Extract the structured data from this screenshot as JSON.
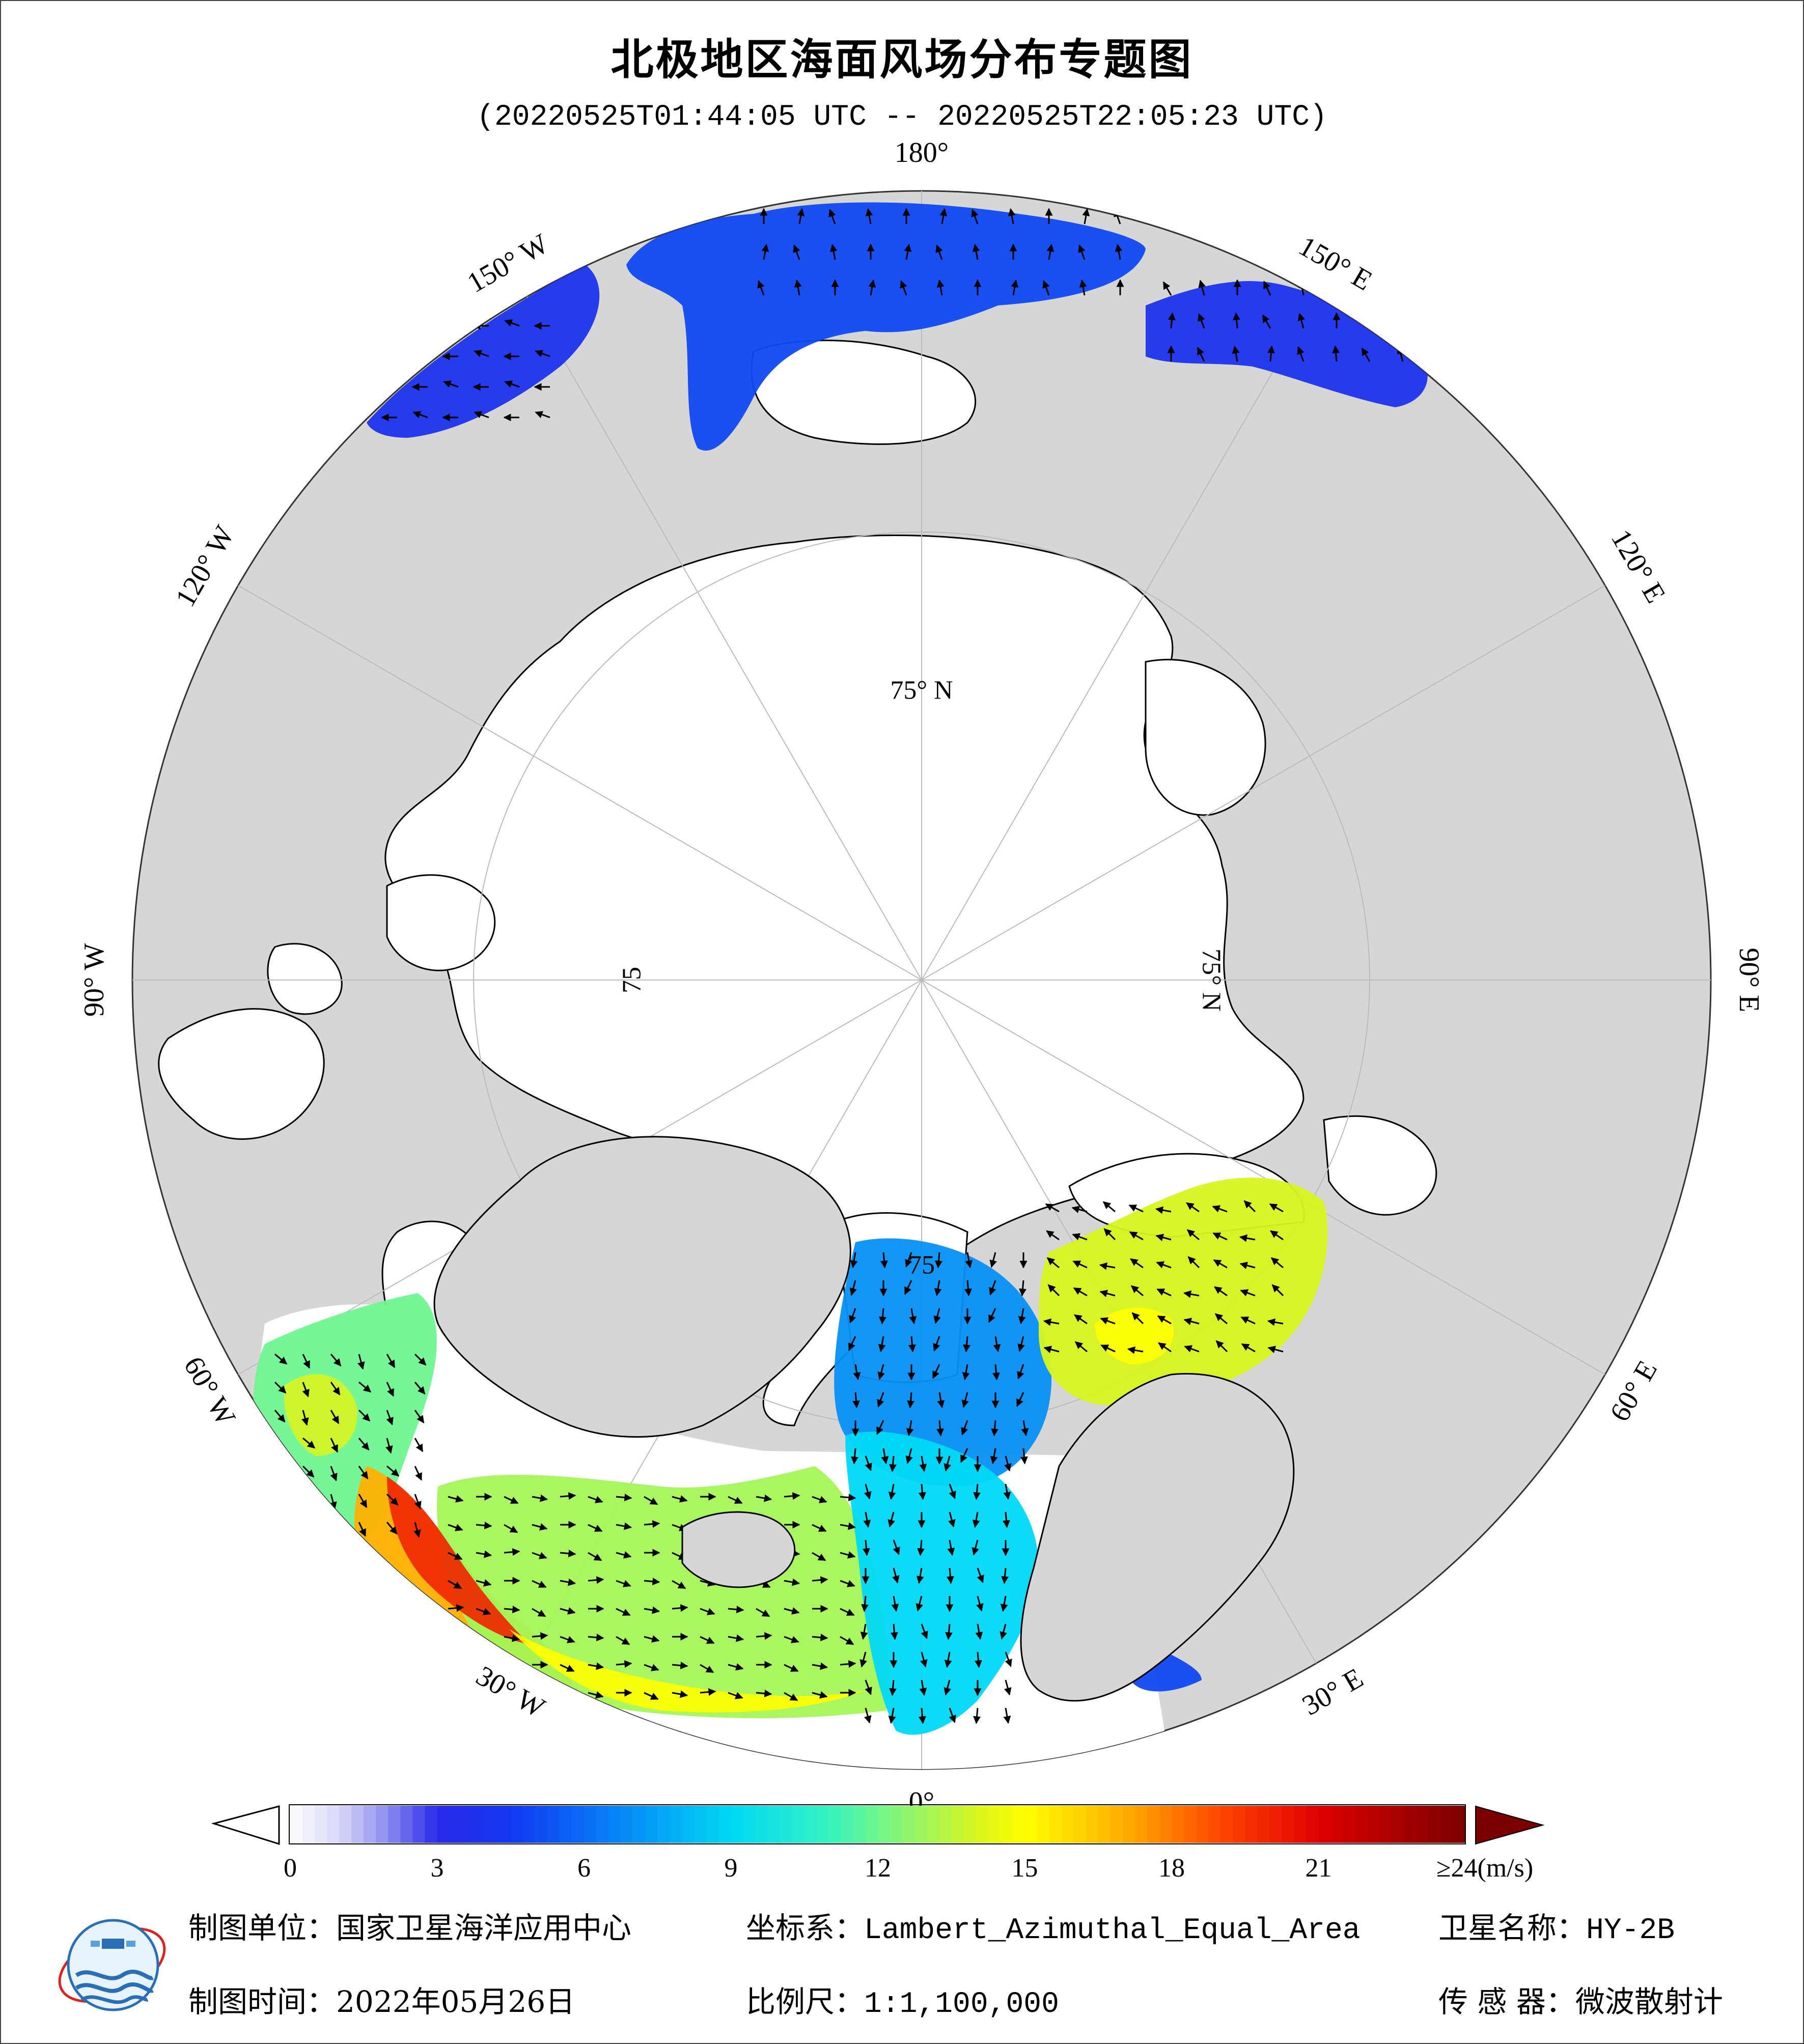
{
  "title": "北极地区海面风场分布专题图",
  "subtitle": "(20220525T01:44:05 UTC -- 20220525T22:05:23 UTC)",
  "map": {
    "projection": "Lambert_Azimuthal_Equal_Area",
    "center": "North Pole",
    "graticule_labels": [
      {
        "text": "180°",
        "lon": 180
      },
      {
        "text": "150° W",
        "lon": -150
      },
      {
        "text": "120° W",
        "lon": -120
      },
      {
        "text": "90° W",
        "lon": -90
      },
      {
        "text": "60° W",
        "lon": -60
      },
      {
        "text": "30° W",
        "lon": -30
      },
      {
        "text": "0°",
        "lon": 0
      },
      {
        "text": "30° E",
        "lon": 30
      },
      {
        "text": "60° E",
        "lon": 60
      },
      {
        "text": "90° E",
        "lon": 90
      },
      {
        "text": "120° E",
        "lon": 120
      },
      {
        "text": "150° E",
        "lon": 150
      }
    ],
    "latitude_labels": [
      {
        "text": "75° N",
        "lon": 180
      },
      {
        "text": "75° N",
        "lon": 90
      },
      {
        "text": "75",
        "lon": -90
      },
      {
        "text": "75",
        "lon": 0
      }
    ],
    "colors": {
      "land": "#d6d6d6",
      "sea_ice": "#ffffff",
      "coastline": "#000000",
      "gridline": "#bbbbbb",
      "arrow": "#000000"
    }
  },
  "colorbar": {
    "unit": "(m/s)",
    "min": 0,
    "max": 24,
    "tick_labels": [
      "0",
      "3",
      "6",
      "9",
      "12",
      "15",
      "18",
      "21",
      "≥24(m/s)"
    ],
    "tick_values": [
      0,
      3,
      6,
      9,
      12,
      15,
      18,
      21,
      24
    ],
    "stops": [
      {
        "v": 0,
        "c": "#ffffff"
      },
      {
        "v": 1,
        "c": "#d8d8fa"
      },
      {
        "v": 2,
        "c": "#8a8af0"
      },
      {
        "v": 3,
        "c": "#2a2ae8"
      },
      {
        "v": 4.5,
        "c": "#1338f0"
      },
      {
        "v": 6,
        "c": "#0a6cf7"
      },
      {
        "v": 9,
        "c": "#00d8f5"
      },
      {
        "v": 11,
        "c": "#35f3c0"
      },
      {
        "v": 12,
        "c": "#6ff590"
      },
      {
        "v": 14,
        "c": "#d8f520"
      },
      {
        "v": 15,
        "c": "#ffff00"
      },
      {
        "v": 17,
        "c": "#ffb000"
      },
      {
        "v": 19,
        "c": "#ff4500"
      },
      {
        "v": 21,
        "c": "#e00000"
      },
      {
        "v": 24,
        "c": "#7a0000"
      }
    ],
    "under_color": "#ffffff",
    "over_color": "#7a0000"
  },
  "footer": {
    "org_label": "制图单位：",
    "org_value": "国家卫星海洋应用中心",
    "crs_label": "坐标系：",
    "crs_value": "Lambert_Azimuthal_Equal_Area",
    "sat_label": "卫星名称：",
    "sat_value": "HY-2B",
    "date_label": "制图时间：",
    "date_value": "2022年05月26日",
    "scale_label": "比例尺：",
    "scale_value": "1:1,100,000",
    "sensor_label": "传 感 器：",
    "sensor_value": "微波散射计"
  },
  "wind_regions": [
    {
      "name": "bering-chukchi-sea",
      "lon": 180,
      "lat": 63,
      "speed": 5
    },
    {
      "name": "gulf-of-alaska-west",
      "lon": -160,
      "lat": 57,
      "speed": 4
    },
    {
      "name": "sea-of-okhotsk",
      "lon": 150,
      "lat": 58,
      "speed": 4
    },
    {
      "name": "greenland-sea",
      "lon": -8,
      "lat": 73,
      "speed": 7
    },
    {
      "name": "barents-sea",
      "lon": 40,
      "lat": 72,
      "speed": 14
    },
    {
      "name": "labrador-sea",
      "lon": -55,
      "lat": 60,
      "speed": 12
    },
    {
      "name": "north-atlantic-south-greenland",
      "lon": -38,
      "lat": 58,
      "speed": 17
    },
    {
      "name": "irminger-iceland-basin",
      "lon": -25,
      "lat": 60,
      "speed": 13
    },
    {
      "name": "norwegian-sea",
      "lon": 0,
      "lat": 66,
      "speed": 9
    },
    {
      "name": "baltic-sea",
      "lon": 20,
      "lat": 58,
      "speed": 5
    }
  ]
}
